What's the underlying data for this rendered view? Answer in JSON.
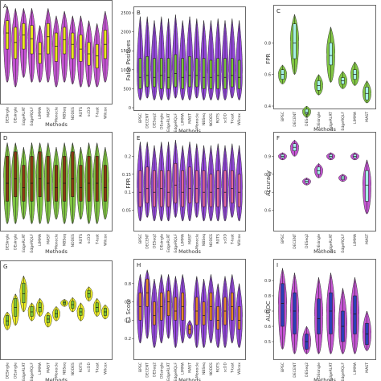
{
  "figure": {
    "methods": [
      "BPSC",
      "DECENT",
      "DESeq2",
      "DEsingle",
      "EdgeRLRT",
      "EdgeRQLF",
      "LIMMA",
      "MAST",
      "Monocle",
      "NBSeq",
      "NODES",
      "ROTS",
      "scDD",
      "T-test",
      "Wilcox"
    ],
    "colors": {
      "purple": "#8e3fd8",
      "magenta": "#c04ccf",
      "yellow": "#eaea1c",
      "green": "#7bc43a",
      "teal": "#5ee0d0",
      "teal_light": "#a6efe6",
      "orange": "#e48a2a",
      "pink": "#e46a9c",
      "brown": "#8a3a12",
      "blue": "#2b3fb8"
    }
  },
  "chart_data": [
    {
      "panel": "A",
      "type": "violin",
      "title": "",
      "xlabel": "Methods",
      "ylabel": "",
      "ylim": [
        0,
        1
      ],
      "yticks": [],
      "fill": "magenta",
      "box": "yellow",
      "categories": [
        "DESingle",
        "DEsingle",
        "EdgeRLRT",
        "EdgeRQLF",
        "LIMMA",
        "MAST",
        "Monocle",
        "NBSeq",
        "NODES",
        "ROTS",
        "scDD",
        "T-test",
        "Wilcox"
      ],
      "medians": [
        0.72,
        0.62,
        0.7,
        0.66,
        0.5,
        0.68,
        0.58,
        0.65,
        0.6,
        0.55,
        0.5,
        0.48,
        0.6
      ],
      "q1": [
        0.55,
        0.45,
        0.55,
        0.5,
        0.4,
        0.5,
        0.42,
        0.5,
        0.45,
        0.42,
        0.38,
        0.35,
        0.45
      ],
      "q3": [
        0.85,
        0.78,
        0.82,
        0.8,
        0.62,
        0.82,
        0.72,
        0.78,
        0.72,
        0.7,
        0.62,
        0.6,
        0.75
      ],
      "min": [
        0.2,
        0.15,
        0.25,
        0.2,
        0.2,
        0.2,
        0.15,
        0.2,
        0.18,
        0.15,
        0.15,
        0.15,
        0.2
      ],
      "max": [
        1.0,
        0.98,
        0.98,
        0.98,
        0.8,
        0.98,
        0.9,
        0.95,
        0.9,
        0.9,
        0.85,
        0.82,
        0.95
      ]
    },
    {
      "panel": "B",
      "type": "violin",
      "title": "",
      "xlabel": "Methods",
      "ylabel": "False Positives",
      "ylim": [
        0,
        2500
      ],
      "yticks": [
        0,
        500,
        1000,
        1500,
        2000,
        2500
      ],
      "fill": "purple",
      "box": "green",
      "categories": [
        "BPSC",
        "DECENT",
        "DESeq2",
        "DEsingle",
        "EdgeRLRT",
        "EdgeRQLF",
        "LIMMA",
        "MAST",
        "Monocle",
        "NBSeq",
        "NODES",
        "ROTS",
        "scDD",
        "T-test",
        "Wilcox"
      ],
      "medians": [
        800,
        850,
        800,
        850,
        800,
        900,
        800,
        850,
        850,
        800,
        800,
        850,
        800,
        850,
        800
      ],
      "q1": [
        500,
        550,
        550,
        500,
        500,
        550,
        500,
        550,
        550,
        500,
        500,
        500,
        500,
        550,
        500
      ],
      "q3": [
        1300,
        1350,
        1300,
        1300,
        1300,
        1400,
        1300,
        1350,
        1300,
        1300,
        1250,
        1300,
        1300,
        1300,
        1250
      ],
      "min": [
        200,
        250,
        200,
        200,
        200,
        250,
        200,
        200,
        250,
        200,
        200,
        200,
        200,
        250,
        200
      ],
      "max": [
        2400,
        2400,
        2300,
        2400,
        2350,
        2450,
        2300,
        2400,
        2350,
        2300,
        2300,
        2350,
        2300,
        2350,
        2300
      ]
    },
    {
      "panel": "C",
      "type": "violin",
      "title": "",
      "xlabel": "Methods",
      "ylabel": "FPR",
      "ylim": [
        0.4,
        1.0
      ],
      "yticks": [
        0.4,
        0.6,
        0.8
      ],
      "fill": "green",
      "box": "teal_light",
      "categories": [
        "BPSC",
        "DECENT",
        "DESeq2",
        "DEsingle",
        "EdgeRLRT",
        "EdgeRQLF",
        "LIMMA",
        "MAST"
      ],
      "medians": [
        0.6,
        0.8,
        0.36,
        0.53,
        0.72,
        0.56,
        0.6,
        0.48
      ],
      "q1": [
        0.57,
        0.7,
        0.35,
        0.5,
        0.66,
        0.54,
        0.57,
        0.44
      ],
      "q3": [
        0.63,
        0.92,
        0.38,
        0.56,
        0.8,
        0.58,
        0.63,
        0.52
      ],
      "min": [
        0.54,
        0.6,
        0.33,
        0.47,
        0.55,
        0.51,
        0.53,
        0.42
      ],
      "max": [
        0.66,
        0.98,
        0.4,
        0.6,
        0.9,
        0.62,
        0.68,
        0.56
      ]
    },
    {
      "panel": "D",
      "type": "violin",
      "title": "",
      "xlabel": "Methods",
      "ylabel": "",
      "ylim": [
        0,
        1
      ],
      "yticks": [],
      "fill": "green",
      "box": "brown",
      "categories": [
        "DESingle",
        "DEsingle",
        "EdgeRLRT",
        "EdgeRQLF",
        "LIMMA",
        "MAST",
        "Monocle",
        "NBSeq",
        "NODES",
        "ROTS",
        "scDD",
        "T-test",
        "Wilcox"
      ],
      "medians": [
        0.5,
        0.55,
        0.45,
        0.5,
        0.55,
        0.5,
        0.45,
        0.5,
        0.55,
        0.45,
        0.5,
        0.5,
        0.45
      ],
      "q1": [
        0.3,
        0.35,
        0.3,
        0.3,
        0.35,
        0.3,
        0.3,
        0.3,
        0.35,
        0.3,
        0.3,
        0.3,
        0.3
      ],
      "q3": [
        0.8,
        0.85,
        0.7,
        0.8,
        0.85,
        0.8,
        0.7,
        0.8,
        0.85,
        0.7,
        0.8,
        0.8,
        0.7
      ],
      "min": [
        0.05,
        0.05,
        0.1,
        0.05,
        0.05,
        0.05,
        0.1,
        0.05,
        0.05,
        0.1,
        0.05,
        0.05,
        0.1
      ],
      "max": [
        0.95,
        0.95,
        0.9,
        0.95,
        0.95,
        0.95,
        0.9,
        0.95,
        0.95,
        0.9,
        0.95,
        0.95,
        0.9
      ]
    },
    {
      "panel": "E",
      "type": "violin",
      "title": "",
      "xlabel": "Methods",
      "ylabel": "FPR",
      "ylim": [
        0,
        0.25
      ],
      "yticks": [
        0.05,
        0.1,
        0.15,
        0.2
      ],
      "fill": "purple",
      "box": "pink",
      "categories": [
        "BPSC",
        "DECENT",
        "DESeq2",
        "DEsingle",
        "EdgeRLRT",
        "EdgeRQLF",
        "LIMMA",
        "MAST",
        "Monocle",
        "NBSeq",
        "NODES",
        "ROTS",
        "scDD",
        "T-test",
        "Wilcox"
      ],
      "medians": [
        0.1,
        0.11,
        0.1,
        0.11,
        0.1,
        0.12,
        0.1,
        0.11,
        0.11,
        0.1,
        0.1,
        0.11,
        0.1,
        0.11,
        0.1
      ],
      "q1": [
        0.06,
        0.07,
        0.06,
        0.06,
        0.06,
        0.07,
        0.06,
        0.07,
        0.07,
        0.06,
        0.06,
        0.06,
        0.06,
        0.07,
        0.06
      ],
      "q3": [
        0.16,
        0.17,
        0.16,
        0.16,
        0.16,
        0.18,
        0.16,
        0.17,
        0.16,
        0.16,
        0.15,
        0.16,
        0.16,
        0.16,
        0.15
      ],
      "min": [
        0.02,
        0.03,
        0.02,
        0.02,
        0.02,
        0.03,
        0.02,
        0.02,
        0.03,
        0.02,
        0.02,
        0.02,
        0.02,
        0.03,
        0.02
      ],
      "max": [
        0.24,
        0.24,
        0.23,
        0.24,
        0.24,
        0.245,
        0.23,
        0.24,
        0.235,
        0.23,
        0.23,
        0.235,
        0.23,
        0.235,
        0.23
      ]
    },
    {
      "panel": "F",
      "type": "violin",
      "title": "",
      "xlabel": "Methods",
      "ylabel": "Accuracy",
      "ylim": [
        0.5,
        1.0
      ],
      "yticks": [
        0.6,
        0.7,
        0.8,
        0.9
      ],
      "fill": "magenta",
      "box": "teal_light",
      "categories": [
        "BPSC",
        "DECENT",
        "DESeq2",
        "DEsingle",
        "EdgeRLRT",
        "EdgeRQLF",
        "LIMMA",
        "MAST"
      ],
      "medians": [
        0.9,
        0.95,
        0.76,
        0.82,
        0.9,
        0.78,
        0.9,
        0.74
      ],
      "q1": [
        0.89,
        0.93,
        0.75,
        0.8,
        0.89,
        0.77,
        0.89,
        0.65
      ],
      "q3": [
        0.91,
        0.97,
        0.77,
        0.84,
        0.91,
        0.79,
        0.91,
        0.82
      ],
      "min": [
        0.88,
        0.9,
        0.74,
        0.78,
        0.88,
        0.76,
        0.88,
        0.58
      ],
      "max": [
        0.92,
        0.99,
        0.78,
        0.86,
        0.92,
        0.8,
        0.92,
        0.88
      ]
    },
    {
      "panel": "G",
      "type": "violin",
      "title": "",
      "xlabel": "Methods",
      "ylabel": "",
      "ylim": [
        0,
        1
      ],
      "yticks": [],
      "fill": "yellow",
      "box": "green",
      "categories": [
        "DESingle",
        "DEsingle",
        "EdgeRLRT",
        "EdgeRQLF",
        "LIMMA",
        "MAST",
        "Monocle",
        "NBSeq",
        "NODES",
        "ROTS",
        "scDD",
        "T-test",
        "Wilcox"
      ],
      "medians": [
        0.4,
        0.55,
        0.7,
        0.5,
        0.55,
        0.42,
        0.48,
        0.6,
        0.58,
        0.5,
        0.7,
        0.55,
        0.5
      ],
      "q1": [
        0.35,
        0.45,
        0.6,
        0.45,
        0.5,
        0.38,
        0.44,
        0.58,
        0.54,
        0.46,
        0.66,
        0.5,
        0.46
      ],
      "q3": [
        0.46,
        0.65,
        0.82,
        0.56,
        0.6,
        0.46,
        0.52,
        0.62,
        0.62,
        0.54,
        0.74,
        0.6,
        0.54
      ],
      "min": [
        0.3,
        0.35,
        0.5,
        0.4,
        0.45,
        0.33,
        0.4,
        0.56,
        0.5,
        0.4,
        0.62,
        0.45,
        0.42
      ],
      "max": [
        0.5,
        0.7,
        0.9,
        0.6,
        0.65,
        0.5,
        0.56,
        0.64,
        0.66,
        0.6,
        0.78,
        0.65,
        0.58
      ]
    },
    {
      "panel": "H",
      "type": "violin",
      "title": "",
      "xlabel": "Methods",
      "ylabel": "F1 Score",
      "ylim": [
        0,
        1
      ],
      "yticks": [
        0.2,
        0.4,
        0.6,
        0.8
      ],
      "fill": "purple",
      "box": "orange",
      "categories": [
        "BPSC",
        "DECENT",
        "DESeq2",
        "DEsingle",
        "EdgeRLRT",
        "EdgeRQLF",
        "LIMMA",
        "MAST",
        "Monocle",
        "NBSeq",
        "NODES",
        "ROTS",
        "scDD",
        "T-test",
        "Wilcox"
      ],
      "medians": [
        0.55,
        0.7,
        0.45,
        0.55,
        0.6,
        0.5,
        0.55,
        0.3,
        0.5,
        0.45,
        0.55,
        0.4,
        0.5,
        0.55,
        0.4
      ],
      "q1": [
        0.4,
        0.55,
        0.35,
        0.4,
        0.45,
        0.4,
        0.4,
        0.25,
        0.35,
        0.35,
        0.4,
        0.3,
        0.35,
        0.4,
        0.3
      ],
      "q3": [
        0.7,
        0.85,
        0.6,
        0.7,
        0.72,
        0.65,
        0.7,
        0.35,
        0.65,
        0.6,
        0.7,
        0.55,
        0.65,
        0.7,
        0.55
      ],
      "min": [
        0.15,
        0.2,
        0.1,
        0.15,
        0.2,
        0.1,
        0.15,
        0.2,
        0.1,
        0.1,
        0.15,
        0.1,
        0.1,
        0.15,
        0.1
      ],
      "max": [
        0.9,
        0.95,
        0.85,
        0.9,
        0.9,
        0.88,
        0.9,
        0.4,
        0.88,
        0.85,
        0.9,
        0.8,
        0.88,
        0.9,
        0.8
      ]
    },
    {
      "panel": "I",
      "type": "violin",
      "title": "",
      "xlabel": "Methods",
      "ylabel": "AUROC",
      "ylim": [
        0.4,
        1.0
      ],
      "yticks": [
        0.5,
        0.6,
        0.7,
        0.8,
        0.9
      ],
      "fill": "magenta",
      "box": "blue",
      "categories": [
        "BPSC",
        "DECENT",
        "DESeq2",
        "DEsingle",
        "EdgeRLRT",
        "EdgeRQLF",
        "LIMMA",
        "MAST"
      ],
      "medians": [
        0.75,
        0.7,
        0.5,
        0.65,
        0.7,
        0.6,
        0.68,
        0.55
      ],
      "q1": [
        0.6,
        0.55,
        0.45,
        0.55,
        0.55,
        0.5,
        0.55,
        0.48
      ],
      "q3": [
        0.88,
        0.82,
        0.55,
        0.78,
        0.82,
        0.7,
        0.8,
        0.62
      ],
      "min": [
        0.45,
        0.42,
        0.42,
        0.42,
        0.42,
        0.42,
        0.42,
        0.44
      ],
      "max": [
        0.98,
        0.95,
        0.6,
        0.92,
        0.95,
        0.85,
        0.92,
        0.7
      ]
    }
  ]
}
